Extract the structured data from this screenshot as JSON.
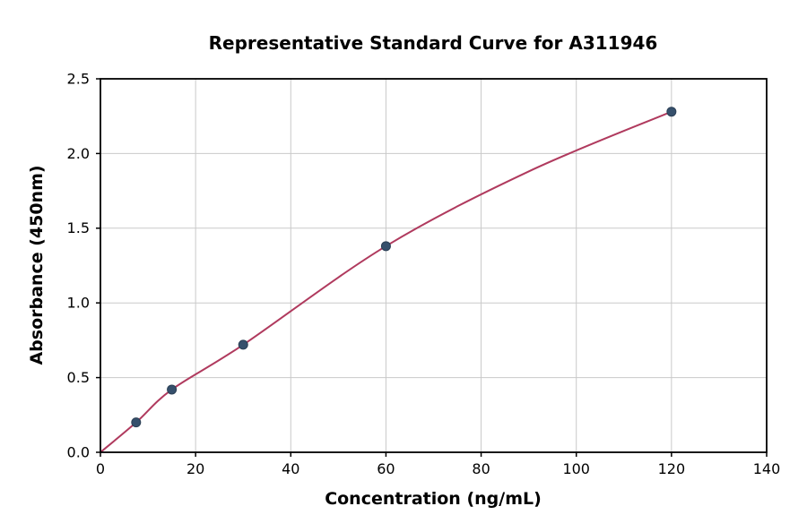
{
  "chart_data": {
    "type": "scatter",
    "title": "Representative Standard Curve for A311946",
    "xlabel": "Concentration (ng/mL)",
    "ylabel": "Absorbance (450nm)",
    "xlim": [
      0,
      140
    ],
    "ylim": [
      0,
      2.5
    ],
    "xticks": [
      0,
      20,
      40,
      60,
      80,
      100,
      120,
      140
    ],
    "xtick_labels": [
      "0",
      "20",
      "40",
      "60",
      "80",
      "100",
      "120",
      "140"
    ],
    "yticks": [
      0,
      0.5,
      1,
      1.5,
      2,
      2.5
    ],
    "ytick_labels": [
      "0.0",
      "0.5",
      "1.0",
      "1.5",
      "2.0",
      "2.5"
    ],
    "grid": true,
    "legend_position": "none",
    "points": {
      "x": [
        7.5,
        15,
        30,
        60,
        120
      ],
      "y": [
        0.2,
        0.42,
        0.72,
        1.38,
        2.28
      ]
    },
    "curve": {
      "x": [
        0,
        7.5,
        15,
        30,
        60,
        90,
        120
      ],
      "y": [
        0.0,
        0.2,
        0.42,
        0.72,
        1.38,
        1.88,
        2.28
      ]
    },
    "colors": {
      "line": "#b03a5e",
      "marker": "#36506c",
      "marker_edge": "#2b3f55",
      "grid": "#c9c9c9",
      "axis": "#000000",
      "background": "#ffffff"
    },
    "marker_size": 5
  }
}
